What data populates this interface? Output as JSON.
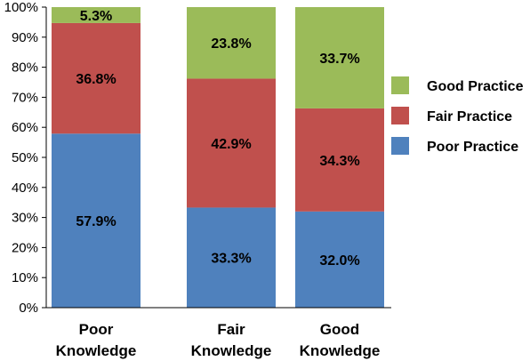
{
  "chart_data": {
    "type": "bar",
    "stacked": true,
    "categories": [
      [
        "Poor",
        "Knowledge"
      ],
      [
        "Fair",
        "Knowledge"
      ],
      [
        "Good",
        "Knowledge"
      ]
    ],
    "series": [
      {
        "name": "Poor Practice",
        "color": "#4f81bd",
        "values": [
          57.9,
          33.3,
          32.0
        ],
        "labels": [
          "57.9%",
          "33.3%",
          "32.0%"
        ]
      },
      {
        "name": "Fair Practice",
        "color": "#c0504d",
        "values": [
          36.8,
          42.9,
          34.3
        ],
        "labels": [
          "36.8%",
          "42.9%",
          "34.3%"
        ]
      },
      {
        "name": "Good Practice",
        "color": "#9bbb59",
        "values": [
          5.3,
          23.8,
          33.7
        ],
        "labels": [
          "5.3%",
          "23.8%",
          "33.7%"
        ]
      }
    ],
    "legend_order": [
      "Good Practice",
      "Fair Practice",
      "Poor Practice"
    ],
    "legend_position": "right",
    "yticks": [
      "0%",
      "10%",
      "20%",
      "30%",
      "40%",
      "50%",
      "60%",
      "70%",
      "80%",
      "90%",
      "100%"
    ],
    "ylim": [
      0,
      100
    ],
    "title": "",
    "xlabel": "",
    "ylabel": "",
    "grid": false
  }
}
